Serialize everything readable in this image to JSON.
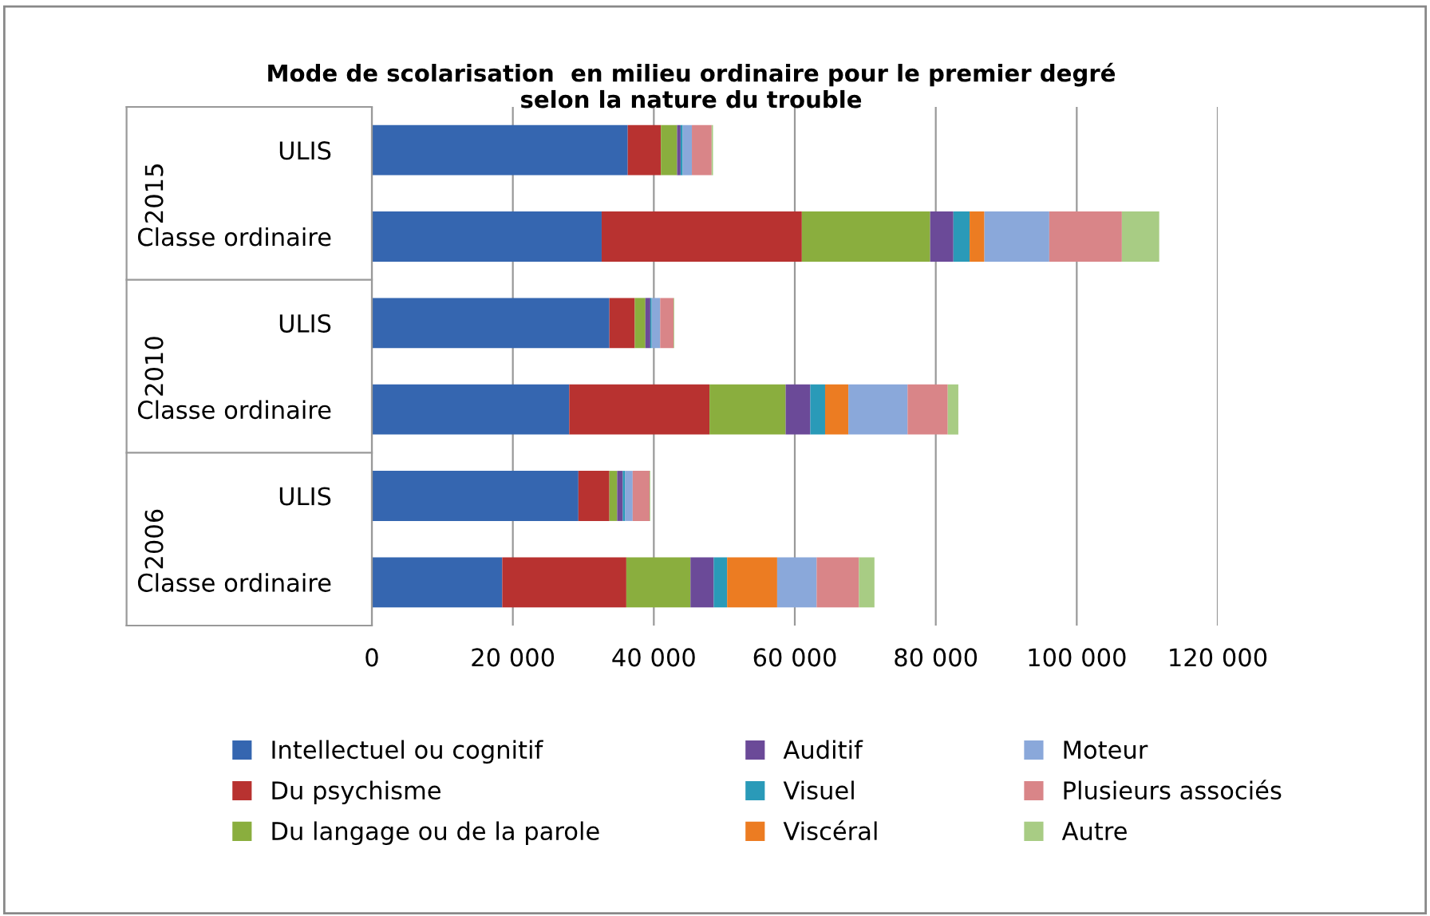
{
  "chart_data": {
    "type": "bar",
    "orientation": "horizontal",
    "stacked": true,
    "title": "Mode de scolarisation  en milieu ordinaire pour le premier degré\nselon la nature du trouble",
    "categories": [
      "ULIS",
      "Classe ordinaire",
      "ULIS",
      "Classe ordinaire",
      "ULIS",
      "Classe ordinaire"
    ],
    "annotations": [
      "2015",
      "2010",
      "2006"
    ],
    "series": [
      {
        "name": "Intellectuel ou cognitif",
        "color": "#3566b0",
        "values": [
          36300,
          32600,
          33700,
          28000,
          29300,
          18500
        ]
      },
      {
        "name": "Du psychisme",
        "color": "#b83230",
        "values": [
          4700,
          28400,
          3600,
          19900,
          4400,
          17600
        ]
      },
      {
        "name": "Du langage ou de la parole",
        "color": "#8aae3e",
        "values": [
          2300,
          18200,
          1500,
          10800,
          1100,
          9100
        ]
      },
      {
        "name": "Auditif",
        "color": "#6b4a98",
        "values": [
          500,
          3300,
          700,
          3500,
          800,
          3300
        ]
      },
      {
        "name": "Visuel",
        "color": "#2a9ab8",
        "values": [
          300,
          2300,
          200,
          2100,
          300,
          1900
        ]
      },
      {
        "name": "Viscéral",
        "color": "#ec7c22",
        "values": [
          0,
          2100,
          0,
          3300,
          0,
          7100
        ]
      },
      {
        "name": "Moteur",
        "color": "#8aa8da",
        "values": [
          1300,
          9200,
          1200,
          8400,
          1100,
          5600
        ]
      },
      {
        "name": "Plusieurs associés",
        "color": "#d98588",
        "values": [
          2800,
          10300,
          1900,
          5700,
          2400,
          6000
        ]
      },
      {
        "name": "Autre",
        "color": "#a8cc84",
        "values": [
          200,
          5300,
          100,
          1500,
          100,
          2200
        ]
      }
    ],
    "xlim": [
      0,
      120000
    ],
    "xticks": [
      0,
      {
        "value": 20000,
        "label": "20 000"
      },
      {
        "value": 40000,
        "label": "40 000"
      },
      {
        "value": 60000,
        "label": "60 000"
      },
      {
        "value": 80000,
        "label": "80 000"
      },
      {
        "value": 100000,
        "label": "100 000"
      },
      {
        "value": 120000,
        "label": "120 000"
      }
    ],
    "grid": "x",
    "legend": "bottom"
  }
}
